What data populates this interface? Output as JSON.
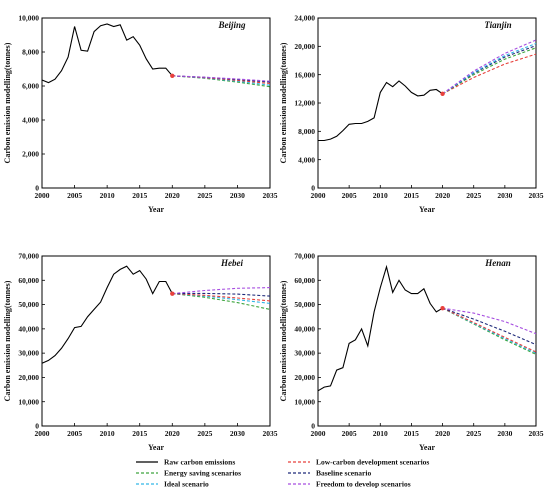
{
  "chart_data": [
    {
      "type": "line",
      "title": "Beijing",
      "xlabel": "Year",
      "ylabel": "Carbon emission modelling(tonnes)",
      "xlim": [
        2000,
        2035
      ],
      "ylim": [
        0,
        10000
      ],
      "xticks": [
        "2000",
        "2005",
        "2010",
        "2015",
        "2020",
        "2025",
        "2030",
        "2035"
      ],
      "yticks": [
        "0",
        "2,000",
        "4,000",
        "6,000",
        "8,000",
        "10,000"
      ],
      "raw": {
        "name": "Raw carbon emissions",
        "x": [
          2000,
          2001,
          2002,
          2003,
          2004,
          2005,
          2006,
          2007,
          2008,
          2009,
          2010,
          2011,
          2012,
          2013,
          2014,
          2015,
          2016,
          2017,
          2018,
          2019,
          2020
        ],
        "y": [
          6350,
          6200,
          6400,
          6900,
          7700,
          9500,
          8100,
          8050,
          9200,
          9550,
          9650,
          9500,
          9600,
          8700,
          8900,
          8400,
          7600,
          7000,
          7050,
          7050,
          6600
        ]
      },
      "projections": [
        {
          "name": "Energy saving scenarios",
          "x": [
            2020,
            2025,
            2030,
            2035
          ],
          "y": [
            6600,
            6450,
            6230,
            5960
          ]
        },
        {
          "name": "Ideal scenario",
          "x": [
            2020,
            2025,
            2030,
            2035
          ],
          "y": [
            6600,
            6470,
            6280,
            6050
          ]
        },
        {
          "name": "Low-carbon development scenarios",
          "x": [
            2020,
            2025,
            2030,
            2035
          ],
          "y": [
            6600,
            6490,
            6330,
            6150
          ]
        },
        {
          "name": "Baseline scenario",
          "x": [
            2020,
            2025,
            2030,
            2035
          ],
          "y": [
            6600,
            6510,
            6380,
            6230
          ]
        },
        {
          "name": "Freedom to develop scenarios",
          "x": [
            2020,
            2025,
            2030,
            2035
          ],
          "y": [
            6600,
            6520,
            6410,
            6280
          ]
        }
      ]
    },
    {
      "type": "line",
      "title": "Tianjin",
      "xlabel": "Year",
      "ylabel": "Carbon emission modelling(tonnes)",
      "xlim": [
        2000,
        2035
      ],
      "ylim": [
        0,
        24000
      ],
      "xticks": [
        "2000",
        "2005",
        "2010",
        "2015",
        "2020",
        "2025",
        "2030",
        "2035"
      ],
      "yticks": [
        "0",
        "4,000",
        "8,000",
        "12,000",
        "16,000",
        "20,000",
        "24,000"
      ],
      "raw": {
        "name": "Raw carbon emissions",
        "x": [
          2000,
          2001,
          2002,
          2003,
          2004,
          2005,
          2006,
          2007,
          2008,
          2009,
          2010,
          2011,
          2012,
          2013,
          2014,
          2015,
          2016,
          2017,
          2018,
          2019,
          2020
        ],
        "y": [
          6700,
          6700,
          6900,
          7300,
          8100,
          9000,
          9100,
          9100,
          9400,
          9900,
          13500,
          14900,
          14300,
          15100,
          14400,
          13500,
          13000,
          13100,
          13800,
          13900,
          13300
        ]
      },
      "projections": [
        {
          "name": "Low-carbon development scenarios",
          "x": [
            2020,
            2025,
            2030,
            2035
          ],
          "y": [
            13300,
            15600,
            17500,
            18900
          ]
        },
        {
          "name": "Energy saving scenarios",
          "x": [
            2020,
            2025,
            2030,
            2035
          ],
          "y": [
            13300,
            16000,
            18200,
            19800
          ]
        },
        {
          "name": "Baseline scenario",
          "x": [
            2020,
            2025,
            2030,
            2035
          ],
          "y": [
            13300,
            16200,
            18500,
            20100
          ]
        },
        {
          "name": "Ideal scenario",
          "x": [
            2020,
            2025,
            2030,
            2035
          ],
          "y": [
            13300,
            16300,
            18700,
            20400
          ]
        },
        {
          "name": "Freedom to develop scenarios",
          "x": [
            2020,
            2025,
            2030,
            2035
          ],
          "y": [
            13300,
            16500,
            19000,
            20900
          ]
        }
      ]
    },
    {
      "type": "line",
      "title": "Hebei",
      "xlabel": "Year",
      "ylabel": "Carbon emission modelling(tonnes)",
      "xlim": [
        2000,
        2035
      ],
      "ylim": [
        0,
        70000
      ],
      "xticks": [
        "2000",
        "2005",
        "2010",
        "2015",
        "2020",
        "2025",
        "2030",
        "2035"
      ],
      "yticks": [
        "0",
        "10,000",
        "20,000",
        "30,000",
        "40,000",
        "50,000",
        "60,000",
        "70,000"
      ],
      "raw": {
        "name": "Raw carbon emissions",
        "x": [
          2000,
          2001,
          2002,
          2003,
          2004,
          2005,
          2006,
          2007,
          2008,
          2009,
          2010,
          2011,
          2012,
          2013,
          2014,
          2015,
          2016,
          2017,
          2018,
          2019,
          2020
        ],
        "y": [
          25800,
          27000,
          29000,
          32000,
          36000,
          40500,
          41000,
          45000,
          48000,
          51000,
          57000,
          62500,
          64500,
          65800,
          62500,
          64000,
          60500,
          54500,
          59500,
          59500,
          54500
        ]
      },
      "projections": [
        {
          "name": "Energy saving scenarios",
          "x": [
            2020,
            2025,
            2030,
            2035
          ],
          "y": [
            54500,
            53000,
            50800,
            48000
          ]
        },
        {
          "name": "Ideal scenario",
          "x": [
            2020,
            2025,
            2030,
            2035
          ],
          "y": [
            54500,
            53500,
            52000,
            50500
          ]
        },
        {
          "name": "Low-carbon development scenarios",
          "x": [
            2020,
            2025,
            2030,
            2035
          ],
          "y": [
            54500,
            53800,
            52700,
            51500
          ]
        },
        {
          "name": "Baseline scenario",
          "x": [
            2020,
            2025,
            2030,
            2035
          ],
          "y": [
            54500,
            54600,
            54300,
            53500
          ]
        },
        {
          "name": "Freedom to develop scenarios",
          "x": [
            2020,
            2025,
            2030,
            2035
          ],
          "y": [
            54500,
            55800,
            56700,
            57000
          ]
        }
      ]
    },
    {
      "type": "line",
      "title": "Henan",
      "xlabel": "Year",
      "ylabel": "Carbon emission modelling(tonnes)",
      "xlim": [
        2000,
        2035
      ],
      "ylim": [
        0,
        70000
      ],
      "xticks": [
        "2000",
        "2005",
        "2010",
        "2015",
        "2020",
        "2025",
        "2030",
        "2035"
      ],
      "yticks": [
        "0",
        "10,000",
        "20,000",
        "30,000",
        "40,000",
        "50,000",
        "60,000",
        "70,000"
      ],
      "raw": {
        "name": "Raw carbon emissions",
        "x": [
          2000,
          2001,
          2002,
          2003,
          2004,
          2005,
          2006,
          2007,
          2008,
          2009,
          2010,
          2011,
          2012,
          2013,
          2014,
          2015,
          2016,
          2017,
          2018,
          2019,
          2020
        ],
        "y": [
          14500,
          16000,
          16500,
          23000,
          24000,
          34000,
          35500,
          40000,
          33000,
          47000,
          57000,
          65500,
          55000,
          60000,
          56000,
          54500,
          54500,
          56500,
          50500,
          47000,
          48500
        ]
      },
      "projections": [
        {
          "name": "Energy saving scenarios",
          "x": [
            2020,
            2025,
            2030,
            2035
          ],
          "y": [
            48500,
            42000,
            35500,
            29500
          ]
        },
        {
          "name": "Ideal scenario",
          "x": [
            2020,
            2025,
            2030,
            2035
          ],
          "y": [
            48500,
            42300,
            36000,
            30000
          ]
        },
        {
          "name": "Low-carbon development scenarios",
          "x": [
            2020,
            2025,
            2030,
            2035
          ],
          "y": [
            48500,
            42600,
            36500,
            30500
          ]
        },
        {
          "name": "Baseline scenario",
          "x": [
            2020,
            2025,
            2030,
            2035
          ],
          "y": [
            48500,
            44000,
            39000,
            33500
          ]
        },
        {
          "name": "Freedom to develop scenarios",
          "x": [
            2020,
            2025,
            2030,
            2035
          ],
          "y": [
            48500,
            46500,
            43000,
            38000
          ]
        }
      ]
    }
  ],
  "legend": {
    "items": [
      {
        "label": "Raw carbon emissions",
        "color": "#000000",
        "dashed": false
      },
      {
        "label": "Low-carbon development scenarios",
        "color": "#e8413c",
        "dashed": true
      },
      {
        "label": "Energy saving scenarios",
        "color": "#3da53d",
        "dashed": true
      },
      {
        "label": "Baseline scenario",
        "color": "#1f2a7a",
        "dashed": true
      },
      {
        "label": "Ideal scenario",
        "color": "#33b6e6",
        "dashed": true
      },
      {
        "label": "Freedom to develop scenarios",
        "color": "#a64de0",
        "dashed": true
      }
    ]
  },
  "colors": {
    "raw": "#000000",
    "Low-carbon development scenarios": "#e8413c",
    "Energy saving scenarios": "#3da53d",
    "Baseline scenario": "#1f2a7a",
    "Ideal scenario": "#33b6e6",
    "Freedom to develop scenarios": "#a64de0",
    "marker": "#e8413c"
  }
}
